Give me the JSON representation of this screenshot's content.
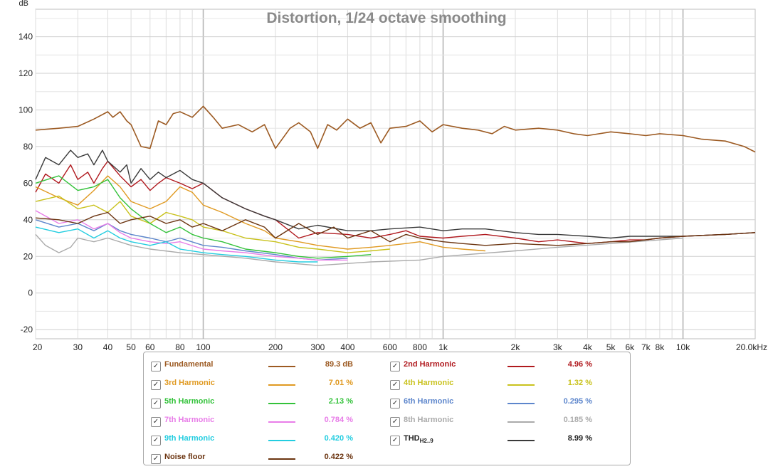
{
  "chart_data": {
    "type": "line",
    "title": "Distortion, 1/24 octave smoothing",
    "ylabel": "dB",
    "xscale": "log",
    "xlim": [
      20,
      20000
    ],
    "ylim": [
      -25,
      155
    ],
    "yticks": [
      "140",
      "120",
      "100",
      "80",
      "60",
      "40",
      "20",
      "0",
      "-20"
    ],
    "xticks": [
      "20",
      "30",
      "40",
      "50",
      "60",
      "80",
      "100",
      "200",
      "300",
      "400",
      "600",
      "800",
      "1k",
      "2k",
      "3k",
      "4k",
      "5k",
      "6k",
      "7k",
      "8k",
      "10k",
      "20.0kHz"
    ],
    "grid": true,
    "legend_position": "bottom",
    "series": [
      {
        "name": "Fundamental",
        "color": "#9c5a22",
        "x": [
          20,
          25,
          30,
          35,
          40,
          42,
          45,
          48,
          50,
          55,
          60,
          65,
          70,
          75,
          80,
          90,
          100,
          110,
          120,
          140,
          160,
          180,
          200,
          230,
          250,
          280,
          300,
          330,
          360,
          400,
          450,
          500,
          550,
          600,
          700,
          800,
          900,
          1000,
          1200,
          1400,
          1600,
          1800,
          2000,
          2500,
          3000,
          3500,
          4000,
          5000,
          6000,
          7000,
          8000,
          10000,
          12000,
          15000,
          18000,
          20000
        ],
        "y": [
          89,
          90,
          91,
          95,
          99,
          96,
          99,
          94,
          92,
          80,
          79,
          94,
          92,
          98,
          99,
          96,
          102,
          96,
          90,
          92,
          88,
          92,
          79,
          90,
          93,
          88,
          79,
          92,
          89,
          95,
          90,
          93,
          82,
          90,
          91,
          94,
          88,
          92,
          90,
          89,
          87,
          91,
          89,
          90,
          89,
          87,
          86,
          88,
          87,
          86,
          87,
          86,
          84,
          83,
          80,
          77
        ]
      },
      {
        "name": "2nd Harmonic",
        "color": "#b0191e",
        "x": [
          20,
          22,
          25,
          28,
          30,
          33,
          35,
          38,
          40,
          45,
          50,
          55,
          60,
          65,
          70,
          80,
          90,
          100,
          120,
          150,
          180,
          200,
          250,
          300,
          400,
          500,
          600,
          700,
          800,
          1000,
          1200,
          1500,
          2000,
          2500,
          3000,
          4000,
          5000,
          6000,
          7000,
          8000,
          10000,
          15000,
          20000
        ],
        "y": [
          55,
          65,
          60,
          70,
          62,
          66,
          60,
          68,
          72,
          64,
          58,
          62,
          56,
          60,
          63,
          60,
          57,
          60,
          52,
          46,
          42,
          40,
          30,
          33,
          32,
          30,
          32,
          34,
          31,
          30,
          31,
          32,
          30,
          28,
          29,
          27,
          28,
          29,
          29,
          30,
          31,
          32,
          33
        ]
      },
      {
        "name": "3rd Harmonic",
        "color": "#e09a22",
        "x": [
          20,
          25,
          30,
          35,
          40,
          45,
          50,
          60,
          70,
          80,
          90,
          100,
          120,
          150,
          180,
          200,
          250,
          300,
          400,
          500,
          600,
          700,
          800,
          1000,
          1200,
          1500
        ],
        "y": [
          58,
          52,
          48,
          56,
          64,
          58,
          50,
          46,
          50,
          58,
          55,
          48,
          44,
          38,
          34,
          30,
          28,
          26,
          24,
          25,
          26,
          27,
          28,
          25,
          24,
          23
        ]
      },
      {
        "name": "4th Harmonic",
        "color": "#c9c21d",
        "x": [
          20,
          25,
          30,
          35,
          40,
          45,
          50,
          60,
          70,
          80,
          90,
          100,
          120,
          150,
          200,
          250,
          300,
          400,
          500,
          600
        ],
        "y": [
          50,
          53,
          46,
          48,
          44,
          50,
          42,
          38,
          44,
          42,
          40,
          36,
          34,
          30,
          28,
          25,
          24,
          22,
          23,
          24
        ]
      },
      {
        "name": "5th Harmonic",
        "color": "#33c23a",
        "x": [
          20,
          25,
          30,
          35,
          40,
          45,
          50,
          60,
          70,
          80,
          90,
          100,
          120,
          150,
          200,
          250,
          300,
          400,
          500
        ],
        "y": [
          60,
          64,
          56,
          58,
          62,
          52,
          46,
          38,
          33,
          36,
          32,
          30,
          28,
          24,
          22,
          20,
          19,
          20,
          21
        ]
      },
      {
        "name": "6th Harmonic",
        "color": "#5d86cc",
        "x": [
          20,
          25,
          30,
          35,
          40,
          45,
          50,
          60,
          70,
          80,
          100,
          120,
          150,
          200,
          250,
          300,
          400
        ],
        "y": [
          40,
          36,
          38,
          34,
          38,
          34,
          32,
          30,
          28,
          30,
          26,
          25,
          23,
          21,
          19,
          18,
          19
        ]
      },
      {
        "name": "7th Harmonic",
        "color": "#e87de8",
        "x": [
          20,
          25,
          30,
          35,
          40,
          45,
          50,
          60,
          70,
          80,
          100,
          120,
          150,
          200,
          250,
          300,
          400
        ],
        "y": [
          45,
          38,
          40,
          35,
          38,
          33,
          30,
          28,
          27,
          28,
          24,
          23,
          22,
          20,
          19,
          18,
          18
        ]
      },
      {
        "name": "8th Harmonic",
        "color": "#aaaaaa",
        "x": [
          20,
          22,
          25,
          28,
          30,
          35,
          40,
          50,
          60,
          80,
          100,
          150,
          200,
          300,
          500,
          800,
          1000,
          2000,
          3000,
          5000,
          8000,
          10000
        ],
        "y": [
          32,
          26,
          22,
          25,
          30,
          28,
          30,
          26,
          24,
          22,
          21,
          19,
          17,
          15,
          17,
          18,
          20,
          23,
          25,
          27,
          29,
          30
        ]
      },
      {
        "name": "9th Harmonic",
        "color": "#23cde0",
        "x": [
          20,
          25,
          30,
          35,
          40,
          45,
          50,
          60,
          70,
          80,
          100,
          120,
          150,
          200,
          250,
          300
        ],
        "y": [
          36,
          33,
          35,
          30,
          34,
          30,
          28,
          26,
          28,
          24,
          22,
          21,
          20,
          18,
          17,
          17
        ]
      },
      {
        "name": "THD",
        "color": "#3a3a3a",
        "x": [
          20,
          22,
          25,
          28,
          30,
          33,
          35,
          38,
          40,
          45,
          48,
          50,
          55,
          60,
          65,
          70,
          80,
          90,
          100,
          120,
          150,
          180,
          200,
          250,
          300,
          400,
          500,
          600,
          800,
          1000,
          1200,
          1500,
          2000,
          2500,
          3000,
          4000,
          5000,
          6000,
          8000,
          10000,
          15000,
          20000
        ],
        "y": [
          62,
          74,
          70,
          78,
          74,
          76,
          70,
          78,
          72,
          66,
          70,
          60,
          68,
          62,
          66,
          63,
          67,
          62,
          60,
          52,
          46,
          42,
          40,
          35,
          37,
          34,
          34,
          35,
          36,
          34,
          35,
          35,
          33,
          32,
          32,
          31,
          30,
          31,
          31,
          31,
          32,
          33
        ]
      },
      {
        "name": "Noise floor",
        "color": "#6b3410",
        "x": [
          20,
          25,
          30,
          35,
          40,
          45,
          50,
          60,
          70,
          80,
          90,
          100,
          120,
          150,
          180,
          200,
          250,
          300,
          350,
          400,
          500,
          600,
          700,
          800,
          1000,
          1200,
          1500,
          2000,
          3000,
          4000,
          5000,
          6000,
          8000,
          10000,
          15000,
          20000
        ],
        "y": [
          41,
          40,
          38,
          42,
          44,
          38,
          40,
          42,
          38,
          40,
          36,
          38,
          34,
          40,
          36,
          30,
          38,
          32,
          36,
          30,
          34,
          28,
          32,
          30,
          28,
          27,
          26,
          27,
          26,
          27,
          28,
          28,
          30,
          31,
          32,
          33
        ]
      }
    ]
  },
  "legend": {
    "items": [
      {
        "name": "Fundamental",
        "value": "89.3 dB",
        "color": "#9c5a22"
      },
      {
        "name": "2nd Harmonic",
        "value": "4.96 %",
        "color": "#b0191e"
      },
      {
        "name": "3rd Harmonic",
        "value": "7.01 %",
        "color": "#e09a22"
      },
      {
        "name": "4th Harmonic",
        "value": "1.32 %",
        "color": "#c9c21d"
      },
      {
        "name": "5th Harmonic",
        "value": "2.13 %",
        "color": "#33c23a"
      },
      {
        "name": "6th Harmonic",
        "value": "0.295 %",
        "color": "#5d86cc"
      },
      {
        "name": "7th Harmonic",
        "value": "0.784 %",
        "color": "#e87de8"
      },
      {
        "name": "8th Harmonic",
        "value": "0.185 %",
        "color": "#aaaaaa"
      },
      {
        "name": "9th Harmonic",
        "value": "0.420 %",
        "color": "#23cde0"
      },
      {
        "name": "THD",
        "sub": "H2..9",
        "value": "8.99 %",
        "color": "#3a3a3a"
      },
      {
        "name": "Noise floor",
        "value": "0.422 %",
        "color": "#6b3410"
      }
    ],
    "check_glyph": "✓"
  }
}
